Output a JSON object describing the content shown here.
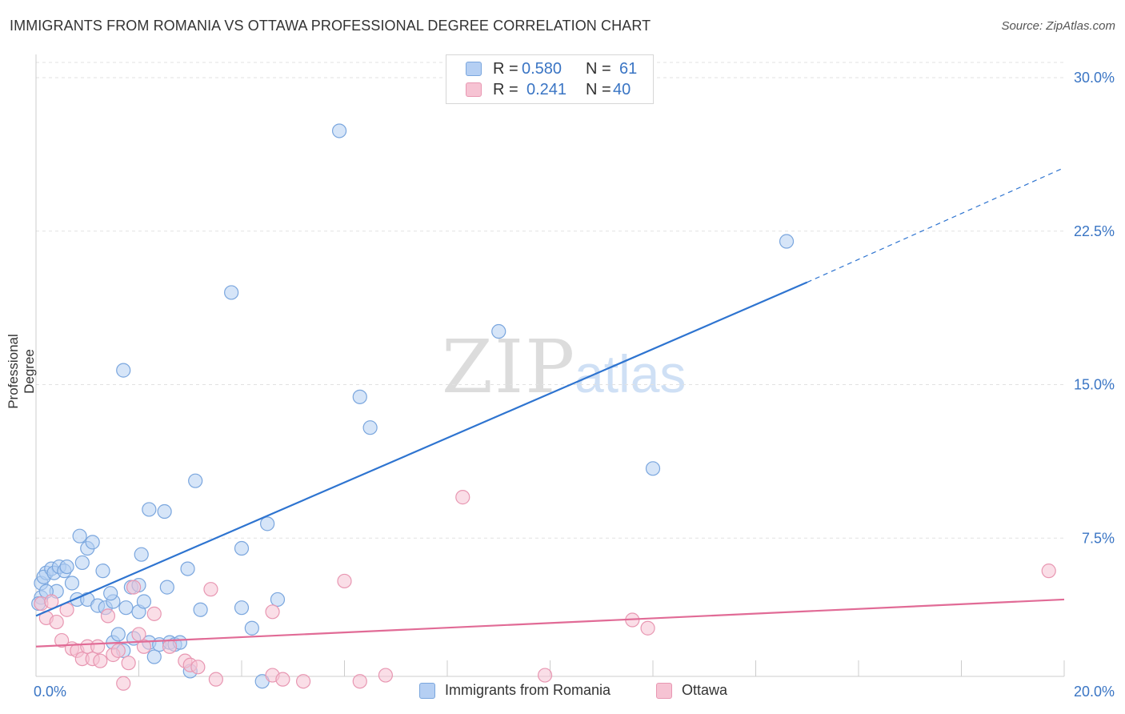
{
  "title": "IMMIGRANTS FROM ROMANIA VS OTTAWA PROFESSIONAL DEGREE CORRELATION CHART",
  "source": "Source: ZipAtlas.com",
  "watermark": {
    "zip": "ZIP",
    "atlas": "atlas"
  },
  "colors": {
    "blue_fill": "#b5cff3",
    "blue_stroke": "#7aa6de",
    "blue_line": "#2e74d0",
    "pink_fill": "#f6c3d3",
    "pink_stroke": "#e897b2",
    "pink_line": "#e16b96",
    "value_text": "#3a75c4",
    "grid": "#e2e2e2",
    "axis": "#cccccc"
  },
  "stats": {
    "rows": [
      {
        "r_label": "R =",
        "r_value": "0.580",
        "n_label": "N =",
        "n_value": "61",
        "series": "blue"
      },
      {
        "r_label": "R =",
        "r_value": "0.241",
        "n_label": "N =",
        "n_value": "40",
        "series": "pink"
      }
    ]
  },
  "legend": {
    "items": [
      {
        "label": "Immigrants from Romania",
        "series": "blue"
      },
      {
        "label": "Ottawa",
        "series": "pink"
      }
    ]
  },
  "chart_data": {
    "type": "scatter",
    "title": "IMMIGRANTS FROM ROMANIA VS OTTAWA PROFESSIONAL DEGREE CORRELATION CHART",
    "xlabel": "",
    "ylabel": "Professional Degree",
    "xlim": [
      0,
      20
    ],
    "ylim": [
      0,
      30
    ],
    "x_tick_labels": [
      {
        "value": 0,
        "label": "0.0%"
      },
      {
        "value": 20,
        "label": "20.0%"
      }
    ],
    "y_tick_labels": [
      {
        "value": 7.5,
        "label": "7.5%"
      },
      {
        "value": 15,
        "label": "15.0%"
      },
      {
        "value": 22.5,
        "label": "22.5%"
      },
      {
        "value": 30,
        "label": "30.0%"
      }
    ],
    "x_minor_ticks": [
      0,
      2,
      4,
      6,
      8,
      10,
      12,
      14,
      16,
      18,
      20
    ],
    "grid": true,
    "legend_position": "bottom-center",
    "series": [
      {
        "name": "Immigrants from Romania",
        "color": "blue",
        "trend": {
          "x0": 0,
          "y0": 3.7,
          "x1": 15,
          "y1": 20.0,
          "dashed_to": 20,
          "dashed_y": 25.6
        },
        "points": [
          [
            0.1,
            5.3
          ],
          [
            0.2,
            5.8
          ],
          [
            0.15,
            5.6
          ],
          [
            0.3,
            6.0
          ],
          [
            0.35,
            5.8
          ],
          [
            0.1,
            4.6
          ],
          [
            0.4,
            4.9
          ],
          [
            0.45,
            6.1
          ],
          [
            0.55,
            5.9
          ],
          [
            0.6,
            6.1
          ],
          [
            0.7,
            5.3
          ],
          [
            0.85,
            7.6
          ],
          [
            0.9,
            6.3
          ],
          [
            1.0,
            7.0
          ],
          [
            1.1,
            7.3
          ],
          [
            0.8,
            4.5
          ],
          [
            1.0,
            4.5
          ],
          [
            1.3,
            5.9
          ],
          [
            1.2,
            4.2
          ],
          [
            1.35,
            4.1
          ],
          [
            1.5,
            4.4
          ],
          [
            1.45,
            4.8
          ],
          [
            1.5,
            2.4
          ],
          [
            1.6,
            2.8
          ],
          [
            1.7,
            2.0
          ],
          [
            1.75,
            4.1
          ],
          [
            1.85,
            5.1
          ],
          [
            1.9,
            2.6
          ],
          [
            2.0,
            5.2
          ],
          [
            2.0,
            3.9
          ],
          [
            2.05,
            6.7
          ],
          [
            2.1,
            4.4
          ],
          [
            2.2,
            8.9
          ],
          [
            2.2,
            2.4
          ],
          [
            2.3,
            1.7
          ],
          [
            2.4,
            2.3
          ],
          [
            2.5,
            8.8
          ],
          [
            2.55,
            5.1
          ],
          [
            2.6,
            2.4
          ],
          [
            2.7,
            2.3
          ],
          [
            2.8,
            2.4
          ],
          [
            2.95,
            6.0
          ],
          [
            3.0,
            1.0
          ],
          [
            3.1,
            10.3
          ],
          [
            3.2,
            4.0
          ],
          [
            1.7,
            15.7
          ],
          [
            3.8,
            19.5
          ],
          [
            4.0,
            7.0
          ],
          [
            4.0,
            4.1
          ],
          [
            4.2,
            3.1
          ],
          [
            4.4,
            0.5
          ],
          [
            4.5,
            8.2
          ],
          [
            4.7,
            4.5
          ],
          [
            5.9,
            27.4
          ],
          [
            6.3,
            14.4
          ],
          [
            6.5,
            12.9
          ],
          [
            9.0,
            17.6
          ],
          [
            12.0,
            10.9
          ],
          [
            14.6,
            22.0
          ],
          [
            0.05,
            4.3
          ],
          [
            0.2,
            4.9
          ]
        ]
      },
      {
        "name": "Ottawa",
        "color": "pink",
        "trend": {
          "x0": 0,
          "y0": 2.2,
          "x1": 20,
          "y1": 4.5
        },
        "points": [
          [
            0.1,
            4.3
          ],
          [
            0.2,
            3.6
          ],
          [
            0.3,
            4.4
          ],
          [
            0.4,
            3.4
          ],
          [
            0.5,
            2.5
          ],
          [
            0.6,
            4.0
          ],
          [
            0.7,
            2.1
          ],
          [
            0.8,
            2.0
          ],
          [
            0.9,
            1.6
          ],
          [
            1.0,
            2.2
          ],
          [
            1.1,
            1.6
          ],
          [
            1.2,
            2.2
          ],
          [
            1.25,
            1.5
          ],
          [
            1.4,
            3.7
          ],
          [
            1.5,
            1.8
          ],
          [
            1.6,
            2.0
          ],
          [
            1.7,
            0.4
          ],
          [
            1.8,
            1.4
          ],
          [
            1.9,
            5.1
          ],
          [
            2.0,
            2.8
          ],
          [
            2.1,
            2.2
          ],
          [
            2.3,
            3.8
          ],
          [
            2.6,
            2.2
          ],
          [
            2.9,
            1.5
          ],
          [
            3.0,
            1.3
          ],
          [
            3.15,
            1.2
          ],
          [
            3.4,
            5.0
          ],
          [
            3.5,
            0.6
          ],
          [
            4.6,
            0.8
          ],
          [
            4.6,
            3.9
          ],
          [
            4.8,
            0.6
          ],
          [
            5.2,
            0.5
          ],
          [
            6.0,
            5.4
          ],
          [
            6.3,
            0.5
          ],
          [
            6.8,
            0.8
          ],
          [
            8.3,
            9.5
          ],
          [
            9.9,
            0.8
          ],
          [
            11.6,
            3.5
          ],
          [
            11.9,
            3.1
          ],
          [
            19.7,
            5.9
          ]
        ]
      }
    ]
  }
}
